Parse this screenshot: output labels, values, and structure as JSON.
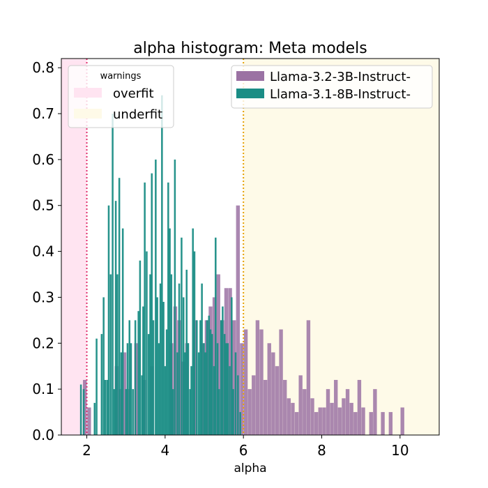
{
  "chart_data": {
    "type": "histogram",
    "title": "alpha histogram: Meta models",
    "xlabel": "alpha",
    "ylabel": "",
    "xlim": [
      1.35,
      11.0
    ],
    "ylim": [
      0.0,
      0.82
    ],
    "xticks": [
      2,
      4,
      6,
      8,
      10
    ],
    "yticks": [
      0.0,
      0.1,
      0.2,
      0.3,
      0.4,
      0.5,
      0.6,
      0.7,
      0.8
    ],
    "xtick_labels": [
      "2",
      "4",
      "6",
      "8",
      "10"
    ],
    "ytick_labels": [
      "0.0",
      "0.1",
      "0.2",
      "0.3",
      "0.4",
      "0.5",
      "0.6",
      "0.7",
      "0.8"
    ],
    "regions": [
      {
        "name": "overfit",
        "x_from": 1.35,
        "x_to": 2.0,
        "color": "#ffe4f1"
      },
      {
        "name": "underfit",
        "x_from": 6.0,
        "x_to": 11.0,
        "color": "#fefae8"
      }
    ],
    "threshold_lines": [
      {
        "x": 2.0,
        "color": "#e0316e",
        "style": "dotted"
      },
      {
        "x": 6.0,
        "color": "#e6a000",
        "style": "dotted"
      }
    ],
    "warnings_legend": {
      "title": "warnings",
      "items": [
        {
          "label": "overfit",
          "color": "#ffe4f1"
        },
        {
          "label": "underfit",
          "color": "#fefae8"
        }
      ]
    },
    "series": [
      {
        "name": "Llama-3.2-3B-Instruct-",
        "color": "#9b72a3",
        "alpha": 0.85,
        "bin_width": 0.096,
        "bins": [
          [
            1.95,
            0.12
          ],
          [
            2.06,
            0.06
          ],
          [
            2.76,
            0.15
          ],
          [
            2.86,
            0.1
          ],
          [
            2.96,
            0.18
          ],
          [
            3.06,
            0.1
          ],
          [
            3.26,
            0.2
          ],
          [
            3.46,
            0.12
          ],
          [
            3.66,
            0.15
          ],
          [
            4.16,
            0.2
          ],
          [
            4.26,
            0.28
          ],
          [
            4.36,
            0.25
          ],
          [
            4.46,
            0.16
          ],
          [
            4.56,
            0.2
          ],
          [
            4.76,
            0.25
          ],
          [
            4.96,
            0.2
          ],
          [
            5.06,
            0.25
          ],
          [
            5.16,
            0.28
          ],
          [
            5.26,
            0.3
          ],
          [
            5.36,
            0.35
          ],
          [
            5.46,
            0.25
          ],
          [
            5.56,
            0.32
          ],
          [
            5.66,
            0.32
          ],
          [
            5.76,
            0.25
          ],
          [
            5.86,
            0.5
          ],
          [
            5.96,
            0.2
          ],
          [
            6.06,
            0.23
          ],
          [
            6.16,
            0.1
          ],
          [
            6.26,
            0.13
          ],
          [
            6.36,
            0.25
          ],
          [
            6.46,
            0.23
          ],
          [
            6.56,
            0.12
          ],
          [
            6.66,
            0.2
          ],
          [
            6.76,
            0.18
          ],
          [
            6.86,
            0.15
          ],
          [
            6.96,
            0.23
          ],
          [
            7.06,
            0.12
          ],
          [
            7.16,
            0.08
          ],
          [
            7.26,
            0.07
          ],
          [
            7.36,
            0.05
          ],
          [
            7.46,
            0.13
          ],
          [
            7.56,
            0.1
          ],
          [
            7.66,
            0.25
          ],
          [
            7.76,
            0.08
          ],
          [
            7.86,
            0.05
          ],
          [
            7.96,
            0.06
          ],
          [
            8.06,
            0.06
          ],
          [
            8.16,
            0.1
          ],
          [
            8.26,
            0.07
          ],
          [
            8.36,
            0.12
          ],
          [
            8.46,
            0.06
          ],
          [
            8.56,
            0.08
          ],
          [
            8.66,
            0.1
          ],
          [
            8.76,
            0.07
          ],
          [
            8.86,
            0.05
          ],
          [
            8.96,
            0.12
          ],
          [
            9.06,
            0.06
          ],
          [
            9.26,
            0.05
          ],
          [
            9.36,
            0.1
          ],
          [
            9.56,
            0.05
          ],
          [
            9.76,
            0.05
          ],
          [
            10.06,
            0.06
          ]
        ]
      },
      {
        "name": "Llama-3.1-8B-Instruct-",
        "color": "#1a8d85",
        "alpha": 0.95,
        "bin_width": 0.045,
        "bins": [
          [
            1.85,
            0.11
          ],
          [
            1.92,
            0.1
          ],
          [
            2.2,
            0.07
          ],
          [
            2.25,
            0.21
          ],
          [
            2.38,
            0.22
          ],
          [
            2.43,
            0.3
          ],
          [
            2.47,
            0.12
          ],
          [
            2.52,
            0.12
          ],
          [
            2.56,
            0.5
          ],
          [
            2.61,
            0.35
          ],
          [
            2.66,
            0.7
          ],
          [
            2.7,
            0.1
          ],
          [
            2.74,
            0.51
          ],
          [
            2.78,
            0.35
          ],
          [
            2.83,
            0.56
          ],
          [
            2.88,
            0.18
          ],
          [
            2.92,
            0.45
          ],
          [
            3.0,
            0.1
          ],
          [
            3.04,
            0.2
          ],
          [
            3.09,
            0.25
          ],
          [
            3.13,
            0.2
          ],
          [
            3.18,
            0.1
          ],
          [
            3.24,
            0.25
          ],
          [
            3.32,
            0.27
          ],
          [
            3.36,
            0.38
          ],
          [
            3.41,
            0.13
          ],
          [
            3.44,
            0.28
          ],
          [
            3.48,
            0.55
          ],
          [
            3.53,
            0.4
          ],
          [
            3.58,
            0.22
          ],
          [
            3.62,
            0.35
          ],
          [
            3.66,
            0.57
          ],
          [
            3.7,
            0.25
          ],
          [
            3.76,
            0.6
          ],
          [
            3.8,
            0.3
          ],
          [
            3.84,
            0.2
          ],
          [
            3.88,
            0.33
          ],
          [
            3.92,
            0.74
          ],
          [
            3.96,
            0.29
          ],
          [
            4.0,
            0.15
          ],
          [
            4.04,
            0.23
          ],
          [
            4.08,
            0.55
          ],
          [
            4.12,
            0.45
          ],
          [
            4.16,
            0.35
          ],
          [
            4.2,
            0.1
          ],
          [
            4.25,
            0.6
          ],
          [
            4.31,
            0.18
          ],
          [
            4.36,
            0.33
          ],
          [
            4.42,
            0.43
          ],
          [
            4.47,
            0.3
          ],
          [
            4.51,
            0.18
          ],
          [
            4.55,
            0.36
          ],
          [
            4.59,
            0.2
          ],
          [
            4.64,
            0.1
          ],
          [
            4.67,
            0.15
          ],
          [
            4.71,
            0.45
          ],
          [
            4.75,
            0.4
          ],
          [
            4.81,
            0.25
          ],
          [
            4.86,
            0.18
          ],
          [
            4.9,
            0.25
          ],
          [
            4.94,
            0.33
          ],
          [
            4.99,
            0.2
          ],
          [
            5.03,
            0.18
          ],
          [
            5.07,
            0.25
          ],
          [
            5.12,
            0.26
          ],
          [
            5.16,
            0.23
          ],
          [
            5.2,
            0.22
          ],
          [
            5.25,
            0.15
          ],
          [
            5.29,
            0.43
          ],
          [
            5.34,
            0.2
          ],
          [
            5.38,
            0.1
          ],
          [
            5.43,
            0.25
          ],
          [
            5.47,
            0.28
          ],
          [
            5.52,
            0.22
          ],
          [
            5.56,
            0.2
          ],
          [
            5.6,
            0.2
          ],
          [
            5.65,
            0.15
          ],
          [
            5.7,
            0.3
          ],
          [
            5.74,
            0.1
          ],
          [
            5.8,
            0.18
          ],
          [
            5.86,
            0.13
          ],
          [
            5.92,
            0.05
          ]
        ]
      }
    ]
  }
}
